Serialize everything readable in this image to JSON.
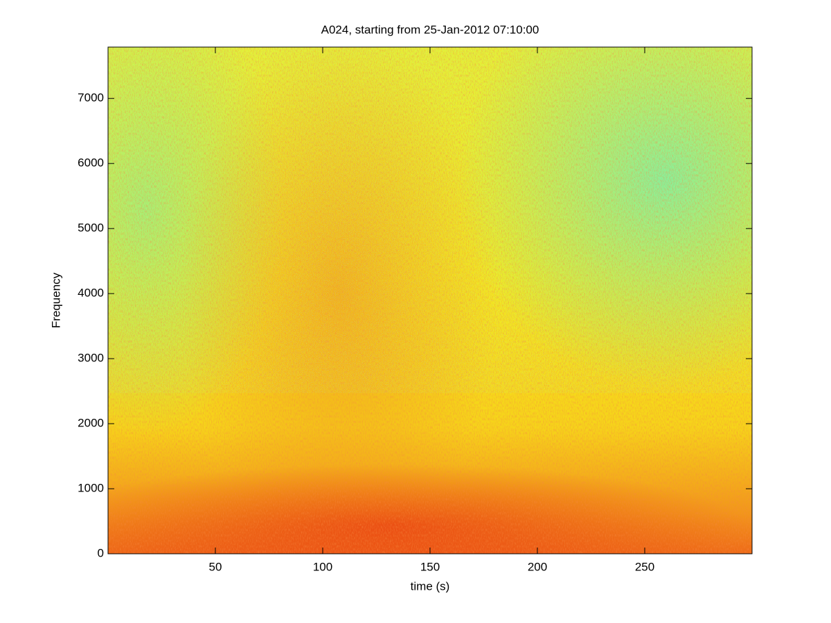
{
  "chart_data": {
    "type": "spectrogram",
    "title": "A024, starting from 25-Jan-2012 07:10:00",
    "x_label": "time (s)",
    "y_label": "Frequency",
    "xlim": [
      0,
      300
    ],
    "xticks": [
      50,
      100,
      150,
      200,
      250
    ],
    "ylim": [
      0,
      7790
    ],
    "yticks": [
      0,
      1000,
      2000,
      3000,
      4000,
      5000,
      6000,
      7000
    ]
  }
}
